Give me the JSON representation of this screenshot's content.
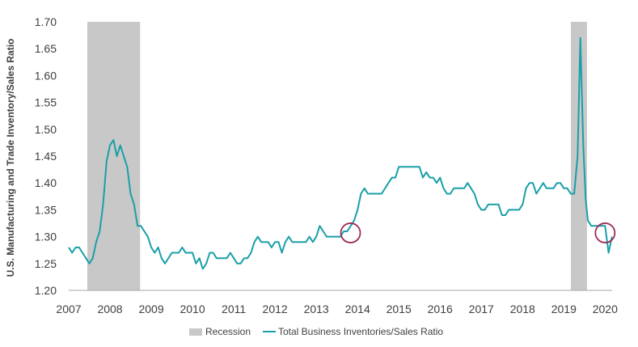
{
  "chart_data": {
    "type": "line",
    "title": "",
    "xlabel": "",
    "ylabel": "U.S. Manufacturing and Trade Inventory/Sales Ratio",
    "xlim": [
      2007.0,
      2020.17
    ],
    "ylim": [
      1.2,
      1.7
    ],
    "x_ticks": [
      "2007",
      "2008",
      "2009",
      "2010",
      "2011",
      "2012",
      "2013",
      "2014",
      "2015",
      "2016",
      "2017",
      "2018",
      "2019",
      "2020"
    ],
    "y_ticks": [
      "1.20",
      "1.25",
      "1.30",
      "1.35",
      "1.40",
      "1.45",
      "1.50",
      "1.55",
      "1.60",
      "1.65",
      "1.70"
    ],
    "grid": false,
    "legend_position": "bottom-center",
    "recession_label": "Recession",
    "recessions": [
      {
        "start": 2007.45,
        "end": 2008.73
      },
      {
        "start": 2019.17,
        "end": 2019.56
      }
    ],
    "highlights": [
      {
        "x": 2013.83,
        "y": 1.307
      },
      {
        "x": 2020.0,
        "y": 1.307
      }
    ],
    "series": [
      {
        "name": "Total Business Inventories/Sales Ratio",
        "color": "#1a9fa8",
        "points": [
          [
            2007.0,
            1.28
          ],
          [
            2007.083,
            1.27
          ],
          [
            2007.167,
            1.28
          ],
          [
            2007.25,
            1.28
          ],
          [
            2007.333,
            1.27
          ],
          [
            2007.417,
            1.26
          ],
          [
            2007.5,
            1.25
          ],
          [
            2007.583,
            1.26
          ],
          [
            2007.667,
            1.29
          ],
          [
            2007.75,
            1.31
          ],
          [
            2007.833,
            1.36
          ],
          [
            2007.917,
            1.44
          ],
          [
            2008.0,
            1.47
          ],
          [
            2008.083,
            1.48
          ],
          [
            2008.167,
            1.45
          ],
          [
            2008.25,
            1.47
          ],
          [
            2008.333,
            1.45
          ],
          [
            2008.417,
            1.43
          ],
          [
            2008.5,
            1.38
          ],
          [
            2008.583,
            1.36
          ],
          [
            2008.667,
            1.32
          ],
          [
            2008.75,
            1.32
          ],
          [
            2008.833,
            1.31
          ],
          [
            2008.917,
            1.3
          ],
          [
            2009.0,
            1.28
          ],
          [
            2009.083,
            1.27
          ],
          [
            2009.167,
            1.28
          ],
          [
            2009.25,
            1.26
          ],
          [
            2009.333,
            1.25
          ],
          [
            2009.417,
            1.26
          ],
          [
            2009.5,
            1.27
          ],
          [
            2009.583,
            1.27
          ],
          [
            2009.667,
            1.27
          ],
          [
            2009.75,
            1.28
          ],
          [
            2009.833,
            1.27
          ],
          [
            2009.917,
            1.27
          ],
          [
            2010.0,
            1.27
          ],
          [
            2010.083,
            1.25
          ],
          [
            2010.167,
            1.26
          ],
          [
            2010.25,
            1.24
          ],
          [
            2010.333,
            1.25
          ],
          [
            2010.417,
            1.27
          ],
          [
            2010.5,
            1.27
          ],
          [
            2010.583,
            1.26
          ],
          [
            2010.667,
            1.26
          ],
          [
            2010.75,
            1.26
          ],
          [
            2010.833,
            1.26
          ],
          [
            2010.917,
            1.27
          ],
          [
            2011.0,
            1.26
          ],
          [
            2011.083,
            1.25
          ],
          [
            2011.167,
            1.25
          ],
          [
            2011.25,
            1.26
          ],
          [
            2011.333,
            1.26
          ],
          [
            2011.417,
            1.27
          ],
          [
            2011.5,
            1.29
          ],
          [
            2011.583,
            1.3
          ],
          [
            2011.667,
            1.29
          ],
          [
            2011.75,
            1.29
          ],
          [
            2011.833,
            1.29
          ],
          [
            2011.917,
            1.28
          ],
          [
            2012.0,
            1.29
          ],
          [
            2012.083,
            1.29
          ],
          [
            2012.167,
            1.27
          ],
          [
            2012.25,
            1.29
          ],
          [
            2012.333,
            1.3
          ],
          [
            2012.417,
            1.29
          ],
          [
            2012.5,
            1.29
          ],
          [
            2012.583,
            1.29
          ],
          [
            2012.667,
            1.29
          ],
          [
            2012.75,
            1.29
          ],
          [
            2012.833,
            1.3
          ],
          [
            2012.917,
            1.29
          ],
          [
            2013.0,
            1.3
          ],
          [
            2013.083,
            1.32
          ],
          [
            2013.167,
            1.31
          ],
          [
            2013.25,
            1.3
          ],
          [
            2013.333,
            1.3
          ],
          [
            2013.417,
            1.3
          ],
          [
            2013.5,
            1.3
          ],
          [
            2013.583,
            1.3
          ],
          [
            2013.667,
            1.31
          ],
          [
            2013.75,
            1.31
          ],
          [
            2013.833,
            1.32
          ],
          [
            2013.917,
            1.33
          ],
          [
            2014.0,
            1.35
          ],
          [
            2014.083,
            1.38
          ],
          [
            2014.167,
            1.39
          ],
          [
            2014.25,
            1.38
          ],
          [
            2014.333,
            1.38
          ],
          [
            2014.417,
            1.38
          ],
          [
            2014.5,
            1.38
          ],
          [
            2014.583,
            1.38
          ],
          [
            2014.667,
            1.39
          ],
          [
            2014.75,
            1.4
          ],
          [
            2014.833,
            1.41
          ],
          [
            2014.917,
            1.41
          ],
          [
            2015.0,
            1.43
          ],
          [
            2015.083,
            1.43
          ],
          [
            2015.167,
            1.43
          ],
          [
            2015.25,
            1.43
          ],
          [
            2015.333,
            1.43
          ],
          [
            2015.417,
            1.43
          ],
          [
            2015.5,
            1.43
          ],
          [
            2015.583,
            1.41
          ],
          [
            2015.667,
            1.42
          ],
          [
            2015.75,
            1.41
          ],
          [
            2015.833,
            1.41
          ],
          [
            2015.917,
            1.4
          ],
          [
            2016.0,
            1.41
          ],
          [
            2016.083,
            1.39
          ],
          [
            2016.167,
            1.38
          ],
          [
            2016.25,
            1.38
          ],
          [
            2016.333,
            1.39
          ],
          [
            2016.417,
            1.39
          ],
          [
            2016.5,
            1.39
          ],
          [
            2016.583,
            1.39
          ],
          [
            2016.667,
            1.4
          ],
          [
            2016.75,
            1.39
          ],
          [
            2016.833,
            1.38
          ],
          [
            2016.917,
            1.36
          ],
          [
            2017.0,
            1.35
          ],
          [
            2017.083,
            1.35
          ],
          [
            2017.167,
            1.36
          ],
          [
            2017.25,
            1.36
          ],
          [
            2017.333,
            1.36
          ],
          [
            2017.417,
            1.36
          ],
          [
            2017.5,
            1.34
          ],
          [
            2017.583,
            1.34
          ],
          [
            2017.667,
            1.35
          ],
          [
            2017.75,
            1.35
          ],
          [
            2017.833,
            1.35
          ],
          [
            2017.917,
            1.35
          ],
          [
            2018.0,
            1.36
          ],
          [
            2018.083,
            1.39
          ],
          [
            2018.167,
            1.4
          ],
          [
            2018.25,
            1.4
          ],
          [
            2018.333,
            1.38
          ],
          [
            2018.417,
            1.39
          ],
          [
            2018.5,
            1.4
          ],
          [
            2018.583,
            1.39
          ],
          [
            2018.667,
            1.39
          ],
          [
            2018.75,
            1.39
          ],
          [
            2018.833,
            1.4
          ],
          [
            2018.917,
            1.4
          ],
          [
            2019.0,
            1.39
          ],
          [
            2019.083,
            1.39
          ],
          [
            2019.167,
            1.38
          ],
          [
            2019.25,
            1.38
          ],
          [
            2019.333,
            1.45
          ],
          [
            2019.4,
            1.67
          ],
          [
            2019.47,
            1.47
          ],
          [
            2019.53,
            1.37
          ],
          [
            2019.583,
            1.33
          ],
          [
            2019.667,
            1.32
          ],
          [
            2019.75,
            1.32
          ],
          [
            2019.833,
            1.32
          ],
          [
            2019.917,
            1.32
          ],
          [
            2020.0,
            1.32
          ],
          [
            2020.083,
            1.27
          ],
          [
            2020.167,
            1.3
          ]
        ]
      }
    ]
  }
}
